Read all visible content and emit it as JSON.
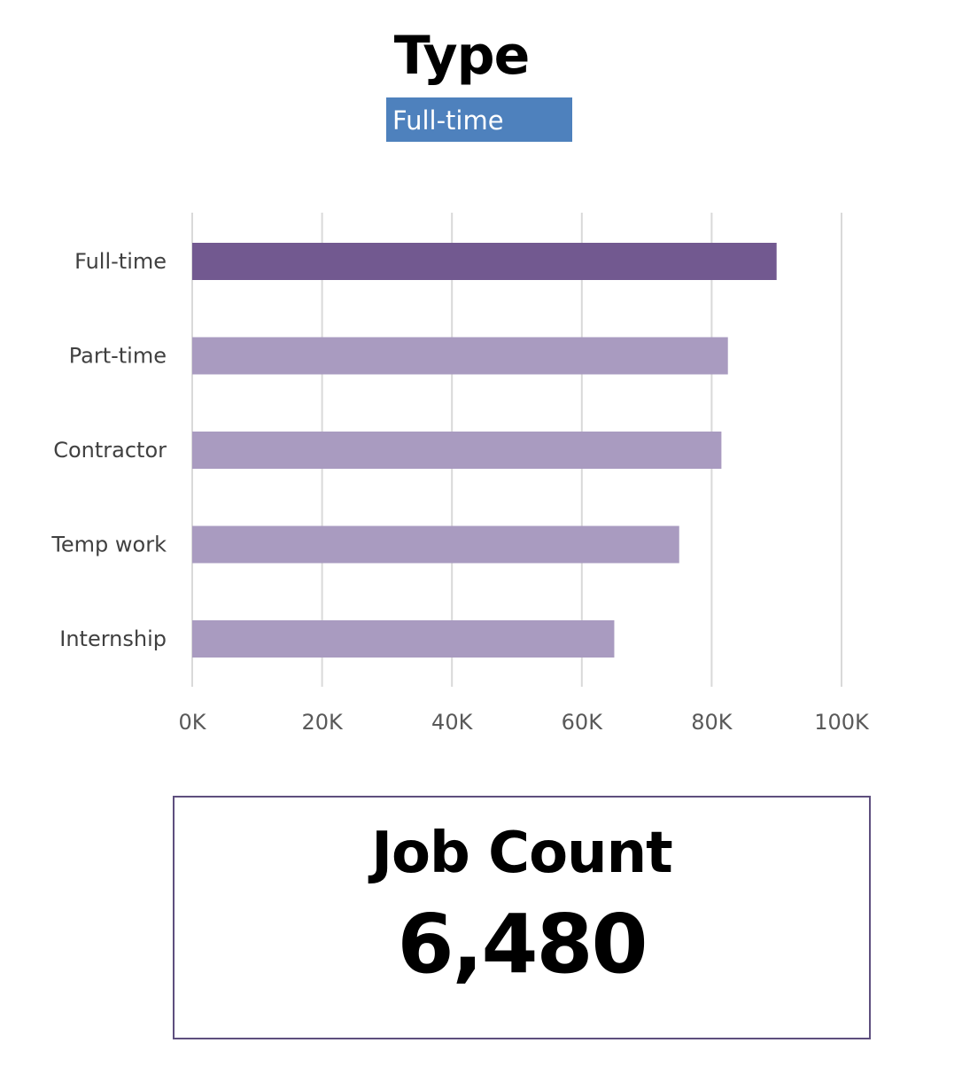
{
  "slicer": {
    "title": "Type",
    "selected": "Full-time"
  },
  "chart_data": {
    "type": "bar",
    "orientation": "horizontal",
    "categories": [
      "Full-time",
      "Part-time",
      "Contractor",
      "Temp work",
      "Internship"
    ],
    "values": [
      90000,
      82500,
      81500,
      75000,
      65000
    ],
    "highlighted": "Full-time",
    "xlim": [
      0,
      100000
    ],
    "xticks": [
      0,
      20000,
      40000,
      60000,
      80000,
      100000
    ],
    "xtick_labels": [
      "0K",
      "20K",
      "40K",
      "60K",
      "80K",
      "100K"
    ],
    "grid": true,
    "colors": {
      "highlight": "#725990",
      "normal": "#a99bc0",
      "gridline": "#d9d9d9"
    }
  },
  "kpi": {
    "label": "Job Count",
    "value": "6,480"
  }
}
